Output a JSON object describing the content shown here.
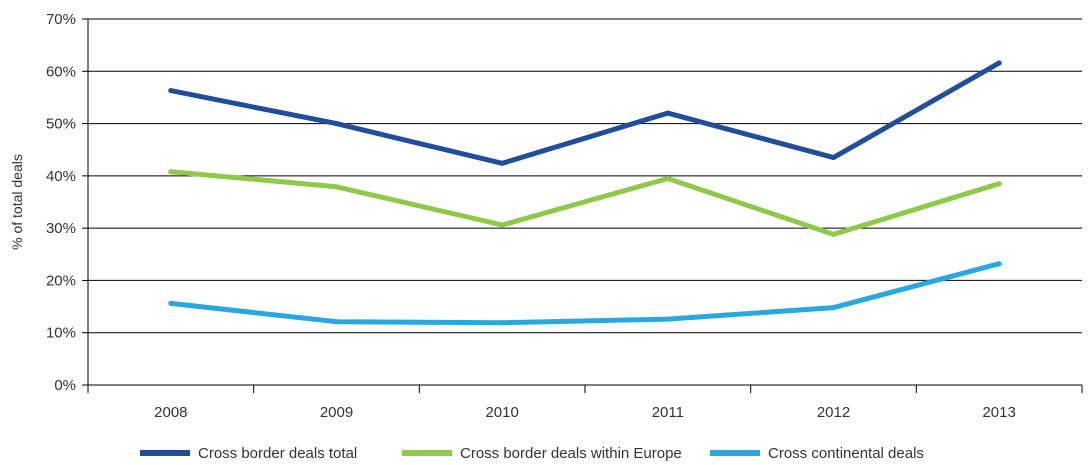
{
  "chart_data": {
    "type": "line",
    "title": "",
    "xlabel": "",
    "ylabel": "% of total deals",
    "ylim": [
      0,
      70
    ],
    "yticks": [
      "0%",
      "10%",
      "20%",
      "30%",
      "40%",
      "50%",
      "60%",
      "70%"
    ],
    "categories": [
      "2008",
      "2009",
      "2010",
      "2011",
      "2012",
      "2013"
    ],
    "grid": true,
    "legend_position": "bottom",
    "series": [
      {
        "name": "Cross border deals total",
        "color": "#1f4e9a",
        "values": [
          56.3,
          50.0,
          42.4,
          52.0,
          43.5,
          61.6
        ]
      },
      {
        "name": "Cross border deals within Europe",
        "color": "#8ec94a",
        "values": [
          40.8,
          37.9,
          30.6,
          39.5,
          28.8,
          38.5
        ]
      },
      {
        "name": "Cross continental deals",
        "color": "#29a8df",
        "values": [
          15.6,
          12.1,
          11.9,
          12.6,
          14.8,
          23.2
        ]
      }
    ]
  }
}
